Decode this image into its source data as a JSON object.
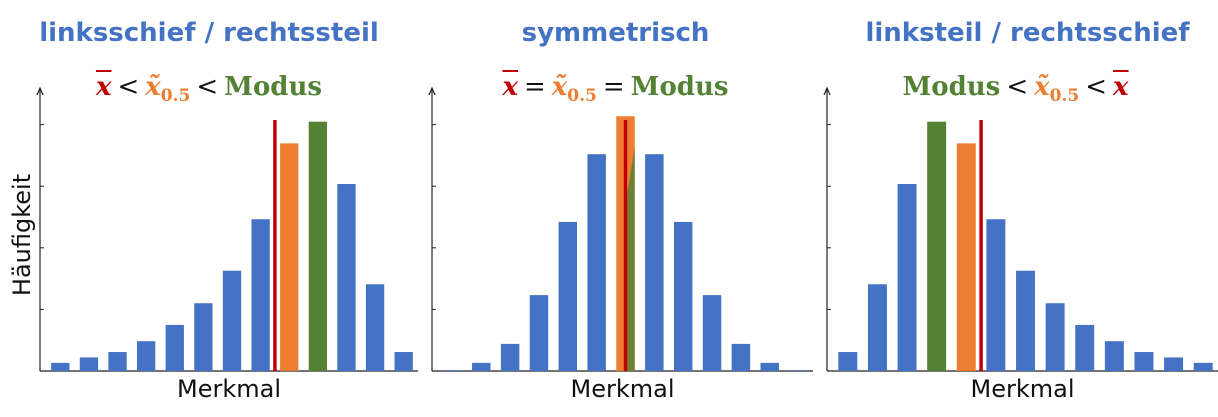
{
  "ylabel": "Häufigkeit",
  "colors": {
    "title": "#4472c4",
    "bar": "#4472c4",
    "median_bar": "#ed7d31",
    "mode_bar": "#548235",
    "mean_line": "#c00000",
    "axis": "#222222"
  },
  "chart_data": [
    {
      "type": "bar",
      "title": "linksschief / rechtssteil",
      "relation": {
        "a": "x",
        "op1": "<",
        "b": "x̃",
        "b_sub": "0.5",
        "op2": "<",
        "c": "Modus"
      },
      "xlabel": "Merkmal",
      "ylim": [
        0,
        100
      ],
      "values": [
        3,
        5,
        7,
        11,
        17,
        25,
        37,
        56,
        84,
        92,
        69,
        32,
        7
      ],
      "median_index": 8,
      "mode_index": 9,
      "mean_position": 7.5
    },
    {
      "type": "bar",
      "title": "symmetrisch",
      "relation": {
        "a": "x",
        "op1": "=",
        "b": "x̃",
        "b_sub": "0.5",
        "op2": "=",
        "c": "Modus"
      },
      "xlabel": "Merkmal",
      "ylim": [
        0,
        100
      ],
      "values": [
        0.3,
        3,
        10,
        28,
        55,
        80,
        94,
        80,
        55,
        28,
        10,
        3,
        0.3
      ],
      "median_index": 6,
      "mode_index": 6,
      "mean_position": 6
    },
    {
      "type": "bar",
      "title": "linksteil / rechtsschief",
      "relation": {
        "a": "Modus",
        "op1": "<",
        "b": "x̃",
        "b_sub": "0.5",
        "op2": "<",
        "c": "x"
      },
      "xlabel": "Merkmal",
      "ylim": [
        0,
        100
      ],
      "values": [
        7,
        32,
        69,
        92,
        84,
        56,
        37,
        25,
        17,
        11,
        7,
        5,
        3
      ],
      "median_index": 4,
      "mode_index": 3,
      "mean_position": 4.5
    }
  ]
}
